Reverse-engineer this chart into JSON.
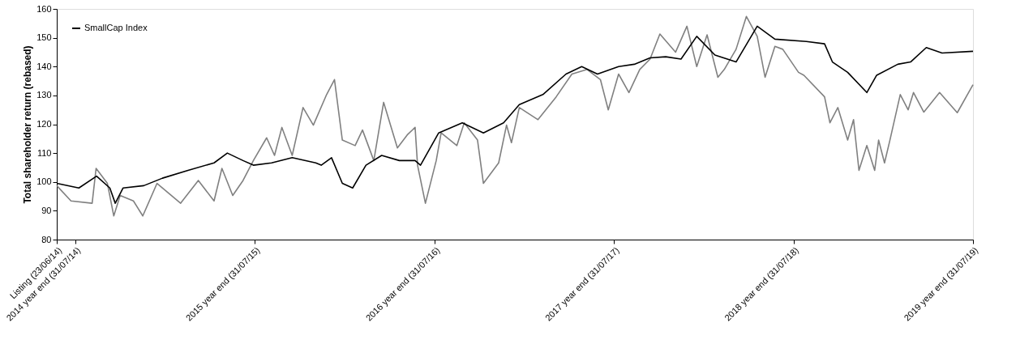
{
  "chart_data": {
    "type": "line",
    "ylabel": "Total shareholder return (rebased)",
    "xlim": [
      "2014-06-23",
      "2019-07-31"
    ],
    "ylim": [
      80,
      160
    ],
    "yticks": [
      80,
      90,
      100,
      110,
      120,
      130,
      140,
      150,
      160
    ],
    "xticks": [
      {
        "value": "2014-06-23",
        "label": "Listing (23/06/14)"
      },
      {
        "value": "2014-07-31",
        "label": "2014 year end (31/07/14)"
      },
      {
        "value": "2015-07-31",
        "label": "2015 year end (31/07/15)"
      },
      {
        "value": "2016-07-31",
        "label": "2016 year end (31/07/16)"
      },
      {
        "value": "2017-07-31",
        "label": "2017 year end (31/07/17)"
      },
      {
        "value": "2018-07-31",
        "label": "2018 year end (31/07/18)"
      },
      {
        "value": "2019-07-31",
        "label": "2019 year end (31/07/19)"
      }
    ],
    "legend": "top left",
    "grid": false,
    "marker": "none",
    "line_style": "solid",
    "series": [
      {
        "color": "#808080",
        "x": [
          "2014-06-23",
          "2014-07-22",
          "2014-09-03",
          "2014-09-11",
          "2014-10-04",
          "2014-10-17",
          "2014-10-30",
          "2014-11-26",
          "2014-12-15",
          "2015-01-13",
          "2015-03-02",
          "2015-04-07",
          "2015-05-09",
          "2015-05-25",
          "2015-06-16",
          "2015-07-07",
          "2015-07-28",
          "2015-08-24",
          "2015-09-09",
          "2015-09-24",
          "2015-10-15",
          "2015-11-06",
          "2015-11-27",
          "2015-12-24",
          "2016-01-09",
          "2016-01-25",
          "2016-02-20",
          "2016-03-06",
          "2016-03-29",
          "2016-04-18",
          "2016-05-16",
          "2016-06-05",
          "2016-06-21",
          "2016-06-26",
          "2016-07-12",
          "2016-08-03",
          "2016-08-13",
          "2016-09-14",
          "2016-09-29",
          "2016-10-26",
          "2016-11-07",
          "2016-12-08",
          "2016-12-24",
          "2017-01-03",
          "2017-01-19",
          "2017-02-26",
          "2017-04-04",
          "2017-05-06",
          "2017-06-06",
          "2017-07-03",
          "2017-07-19",
          "2017-08-09",
          "2017-08-30",
          "2017-09-21",
          "2017-10-12",
          "2017-11-01",
          "2017-12-03",
          "2017-12-26",
          "2018-01-15",
          "2018-02-05",
          "2018-02-27",
          "2018-03-12",
          "2018-04-05",
          "2018-04-26",
          "2018-05-18",
          "2018-06-03",
          "2018-06-23",
          "2018-07-09",
          "2018-08-10",
          "2018-08-21",
          "2018-10-02",
          "2018-10-13",
          "2018-10-29",
          "2018-11-18",
          "2018-11-30",
          "2018-12-11",
          "2018-12-27",
          "2019-01-12",
          "2019-01-20",
          "2019-02-01",
          "2019-02-12",
          "2019-03-05",
          "2019-03-21",
          "2019-04-01",
          "2019-04-22",
          "2019-05-24",
          "2019-06-29",
          "2019-07-31"
        ],
        "values": [
          98.7,
          93.4,
          92.6,
          104.7,
          99.5,
          88.2,
          95.3,
          93.4,
          88.2,
          99.5,
          92.6,
          100.5,
          93.4,
          104.7,
          95.3,
          100.5,
          107.4,
          115.3,
          109.2,
          118.9,
          109.2,
          125.8,
          119.7,
          130.3,
          135.5,
          114.5,
          112.6,
          118,
          107.4,
          127.6,
          111.8,
          116.3,
          118.9,
          105.8,
          92.6,
          107.4,
          117,
          112.6,
          120.5,
          114.5,
          99.5,
          106.6,
          119.7,
          113.6,
          125.8,
          121.6,
          129.5,
          137.4,
          139,
          135.5,
          125,
          137.4,
          131,
          139,
          142.6,
          151.3,
          145,
          154,
          140,
          151,
          136.3,
          139,
          146,
          157.4,
          150.5,
          136.3,
          147,
          146,
          138,
          137,
          129.5,
          120.5,
          125.8,
          114.5,
          121.6,
          104,
          112.6,
          104,
          114.5,
          106.6,
          114.5,
          130.3,
          125,
          131,
          124.2,
          131,
          124,
          133.7
        ]
      },
      {
        "name": "SmallCap Index",
        "color": "#000000",
        "x": [
          "2014-06-23",
          "2014-08-07",
          "2014-09-12",
          "2014-10-09",
          "2014-10-20",
          "2014-11-05",
          "2014-12-17",
          "2015-01-24",
          "2015-03-17",
          "2015-05-09",
          "2015-06-05",
          "2015-07-07",
          "2015-07-28",
          "2015-09-03",
          "2015-10-15",
          "2015-12-02",
          "2015-12-13",
          "2016-01-03",
          "2016-01-25",
          "2016-02-15",
          "2016-03-13",
          "2016-04-14",
          "2016-05-20",
          "2016-06-21",
          "2016-07-02",
          "2016-08-08",
          "2016-09-25",
          "2016-11-07",
          "2016-12-18",
          "2017-01-19",
          "2017-03-08",
          "2017-04-24",
          "2017-05-26",
          "2017-06-27",
          "2017-08-09",
          "2017-09-10",
          "2017-10-12",
          "2017-11-13",
          "2017-12-14",
          "2018-01-15",
          "2018-02-21",
          "2018-04-05",
          "2018-05-18",
          "2018-06-23",
          "2018-08-26",
          "2018-10-02",
          "2018-10-18",
          "2018-11-18",
          "2018-12-27",
          "2019-01-16",
          "2019-02-28",
          "2019-03-26",
          "2019-04-27",
          "2019-05-29",
          "2019-07-31"
        ],
        "values": [
          99.5,
          97.9,
          102,
          97.9,
          92.6,
          97.9,
          98.7,
          101.3,
          104,
          106.6,
          110,
          107.4,
          105.8,
          106.6,
          108.4,
          106.6,
          105.8,
          108.4,
          99.5,
          97.9,
          105.8,
          109.2,
          107.4,
          107.4,
          105.8,
          117,
          120.5,
          117,
          120.5,
          126.8,
          130.3,
          137.4,
          140,
          137.4,
          140,
          140.8,
          143,
          143.4,
          142.6,
          150.5,
          144,
          141.6,
          154,
          149.5,
          148.7,
          147.9,
          141.6,
          138,
          131,
          137,
          140.8,
          141.6,
          146.6,
          144.7,
          145.3
        ]
      }
    ]
  }
}
